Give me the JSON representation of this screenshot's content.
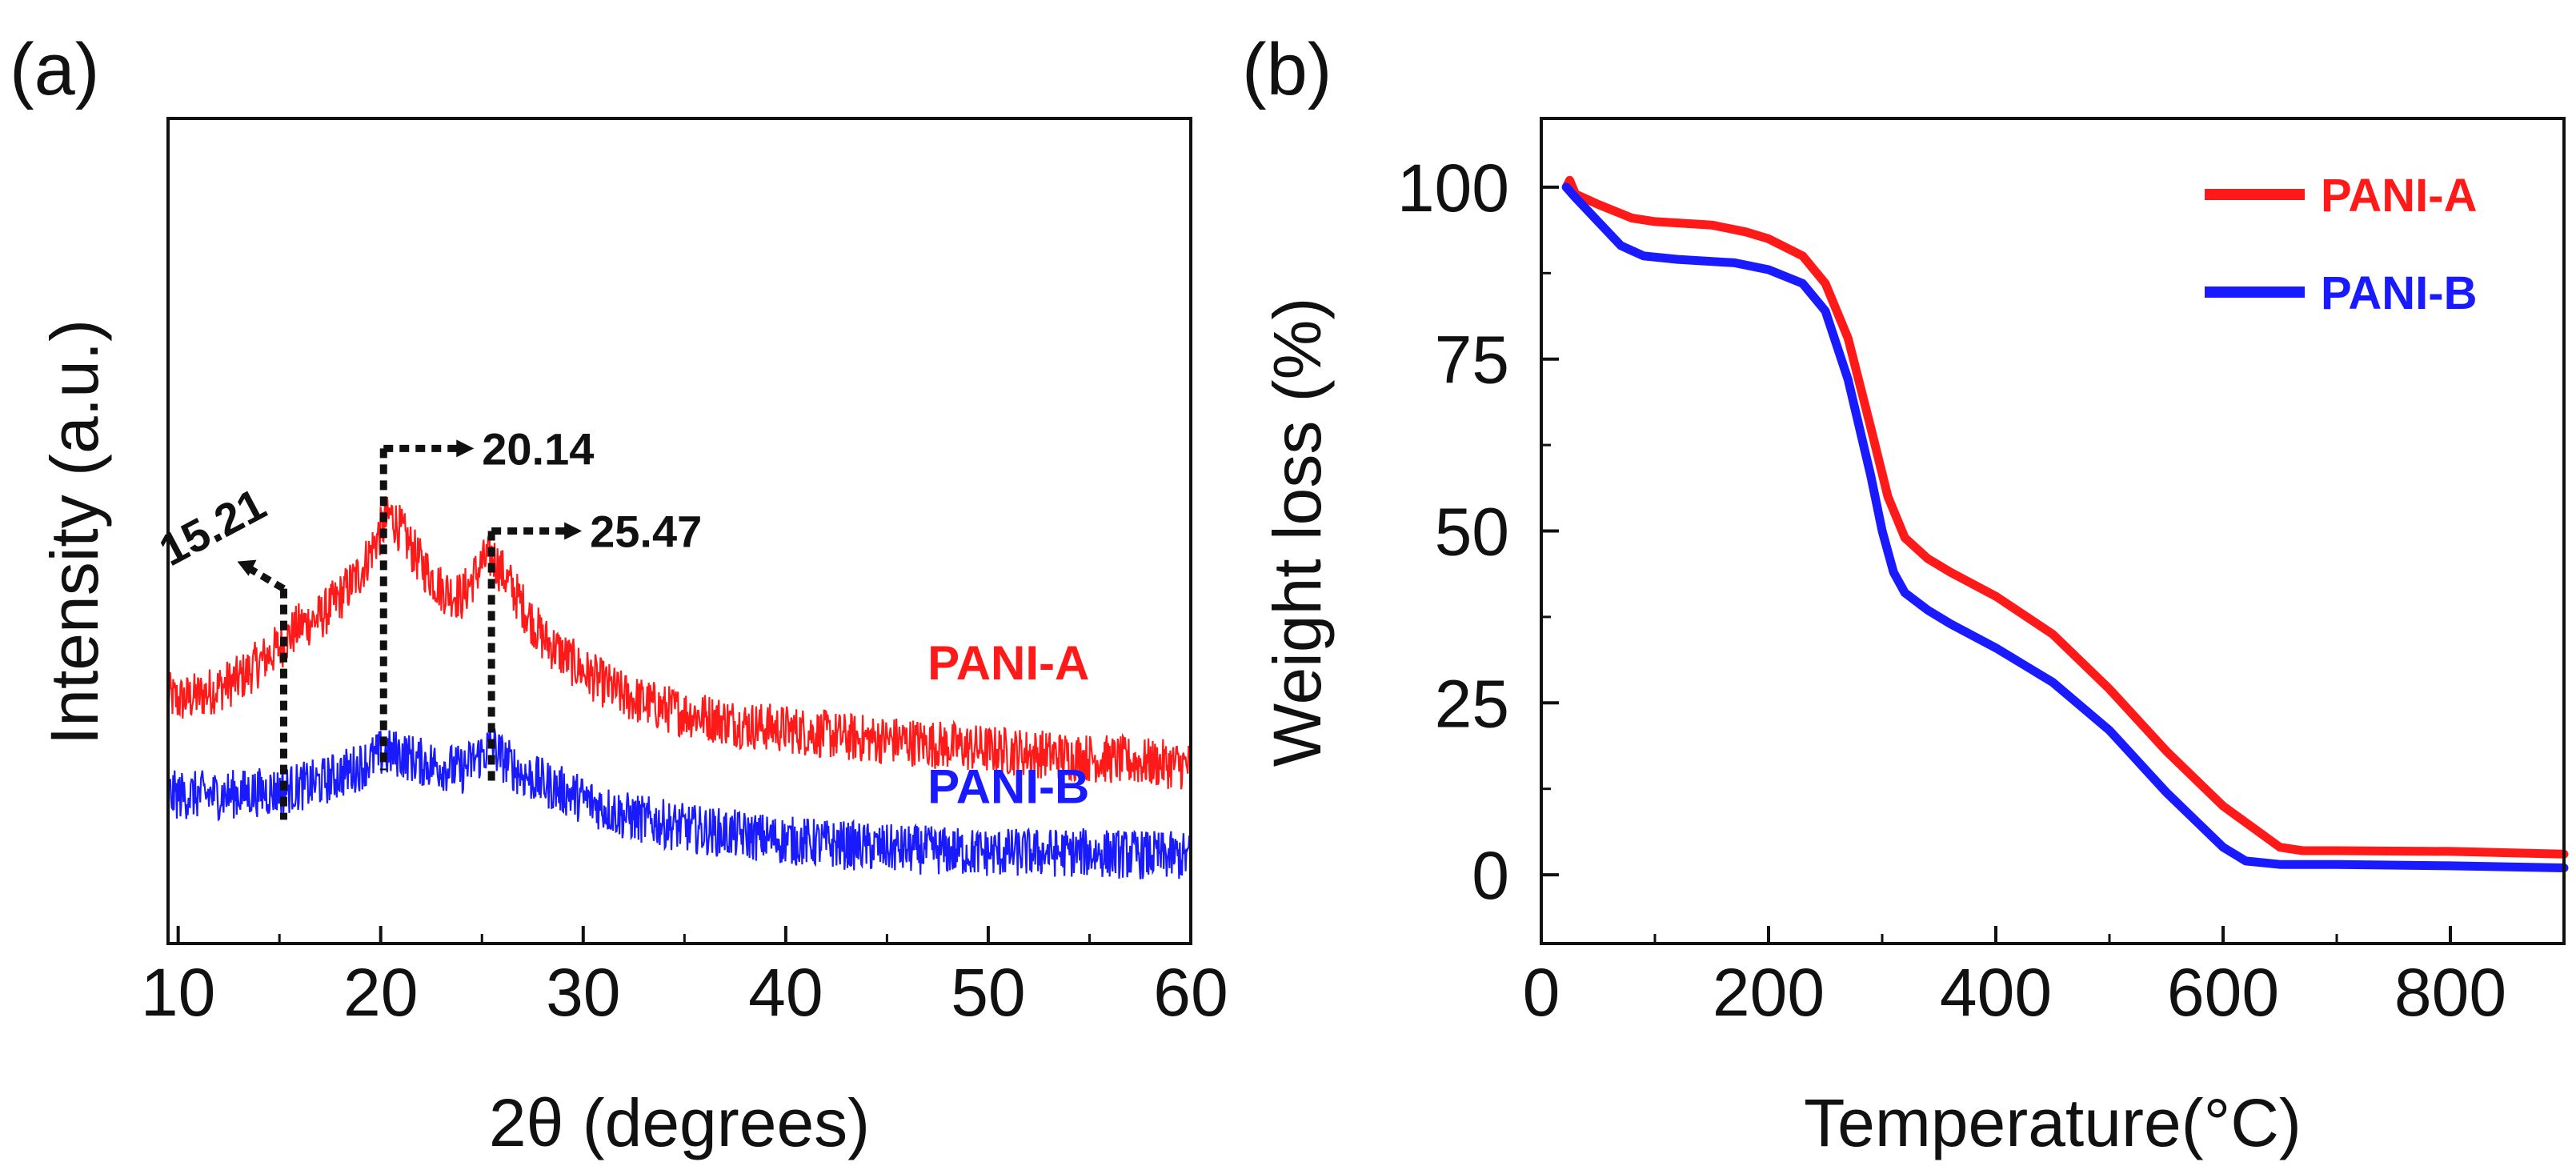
{
  "chart_data": [
    {
      "type": "line",
      "panel_label": "(a)",
      "xlabel": "2θ (degrees)",
      "ylabel": "Intensity (a.u.)",
      "xlim": [
        9.5,
        60
      ],
      "ylim": [
        0,
        100
      ],
      "xticks": [
        10,
        20,
        30,
        40,
        50,
        60
      ],
      "xtick_labels": [
        "10",
        "20",
        "30",
        "40",
        "50",
        "60"
      ],
      "y_ticks_shown": false,
      "series": [
        {
          "name": "PANI-A",
          "color": "#ff1a1a",
          "noisy": true,
          "points": [
            [
              9.5,
              30
            ],
            [
              10,
              29.5
            ],
            [
              11,
              30
            ],
            [
              12,
              31
            ],
            [
              13,
              32
            ],
            [
              14,
              34
            ],
            [
              15,
              36
            ],
            [
              16,
              38.5
            ],
            [
              17,
              39.5
            ],
            [
              18,
              42
            ],
            [
              19,
              45
            ],
            [
              20,
              50
            ],
            [
              20.5,
              52
            ],
            [
              21,
              50
            ],
            [
              22,
              46
            ],
            [
              23,
              43
            ],
            [
              24,
              42
            ],
            [
              25,
              46
            ],
            [
              25.5,
              47
            ],
            [
              26,
              45
            ],
            [
              27,
              41
            ],
            [
              28,
              37
            ],
            [
              29,
              35
            ],
            [
              30,
              33
            ],
            [
              32,
              30
            ],
            [
              34,
              28.5
            ],
            [
              36,
              27.5
            ],
            [
              38,
              26.5
            ],
            [
              40,
              26
            ],
            [
              43,
              25
            ],
            [
              46,
              24.5
            ],
            [
              50,
              23.5
            ],
            [
              55,
              22.5
            ],
            [
              60,
              21.5
            ]
          ]
        },
        {
          "name": "PANI-B",
          "color": "#1a1aff",
          "noisy": true,
          "points": [
            [
              9.5,
              18
            ],
            [
              12,
              18
            ],
            [
              15,
              18.5
            ],
            [
              17,
              19.5
            ],
            [
              19,
              21.5
            ],
            [
              20,
              23
            ],
            [
              21,
              23
            ],
            [
              22,
              22
            ],
            [
              23,
              21.5
            ],
            [
              24,
              21
            ],
            [
              25,
              23
            ],
            [
              25.5,
              24
            ],
            [
              26,
              22.5
            ],
            [
              27,
              20.5
            ],
            [
              28,
              19.5
            ],
            [
              30,
              17.5
            ],
            [
              32,
              15.5
            ],
            [
              35,
              14
            ],
            [
              40,
              12.5
            ],
            [
              45,
              11.5
            ],
            [
              50,
              11
            ],
            [
              55,
              11
            ],
            [
              60,
              10.5
            ]
          ]
        }
      ],
      "series_labels": [
        {
          "text": "PANI-A",
          "color": "#ff1a1a",
          "x": 51,
          "y": 32
        },
        {
          "text": "PANI-B",
          "color": "#1a1aff",
          "x": 51,
          "y": 17
        }
      ],
      "annotations": [
        {
          "text": "15.21",
          "peak_x": 15.21,
          "line_top": 43,
          "line_bottom": 15
        },
        {
          "text": "20.14",
          "peak_x": 20.14,
          "line_top": 60,
          "line_bottom": 21
        },
        {
          "text": "25.47",
          "peak_x": 25.47,
          "line_top": 50,
          "line_bottom": 19
        }
      ]
    },
    {
      "type": "line",
      "panel_label": "(b)",
      "xlabel": "Temperature(°C)",
      "ylabel": "Weight loss (%)",
      "xlim": [
        0,
        900
      ],
      "ylim": [
        -10,
        110
      ],
      "xticks": [
        0,
        200,
        400,
        600,
        800
      ],
      "xtick_labels": [
        "0",
        "200",
        "400",
        "600",
        "800"
      ],
      "yticks": [
        0,
        25,
        50,
        75,
        100
      ],
      "ytick_labels": [
        "0",
        "25",
        "50",
        "75",
        "100"
      ],
      "legend_position": "top-right",
      "series": [
        {
          "name": "PANI-A",
          "color": "#ff1a1a",
          "points": [
            [
              22,
              100
            ],
            [
              25,
              101
            ],
            [
              30,
              99
            ],
            [
              50,
              97.5
            ],
            [
              80,
              95.5
            ],
            [
              100,
              95
            ],
            [
              150,
              94.5
            ],
            [
              180,
              93.5
            ],
            [
              200,
              92.5
            ],
            [
              230,
              90
            ],
            [
              250,
              86
            ],
            [
              270,
              78
            ],
            [
              290,
              65
            ],
            [
              305,
              55
            ],
            [
              320,
              49
            ],
            [
              340,
              46
            ],
            [
              360,
              44
            ],
            [
              400,
              40.5
            ],
            [
              450,
              35
            ],
            [
              500,
              27
            ],
            [
              550,
              18
            ],
            [
              600,
              10
            ],
            [
              650,
              4
            ],
            [
              670,
              3.5
            ],
            [
              700,
              3.5
            ],
            [
              800,
              3.4
            ],
            [
              900,
              3
            ]
          ]
        },
        {
          "name": "PANI-B",
          "color": "#1a1aff",
          "points": [
            [
              22,
              100
            ],
            [
              30,
              98.5
            ],
            [
              50,
              95
            ],
            [
              70,
              91.5
            ],
            [
              90,
              90
            ],
            [
              120,
              89.5
            ],
            [
              170,
              89
            ],
            [
              200,
              88
            ],
            [
              230,
              86
            ],
            [
              250,
              82
            ],
            [
              270,
              72
            ],
            [
              290,
              58
            ],
            [
              300,
              50
            ],
            [
              310,
              44
            ],
            [
              320,
              41
            ],
            [
              340,
              38.5
            ],
            [
              360,
              36.5
            ],
            [
              400,
              33
            ],
            [
              450,
              28
            ],
            [
              500,
              21
            ],
            [
              550,
              12
            ],
            [
              600,
              4
            ],
            [
              620,
              2
            ],
            [
              650,
              1.5
            ],
            [
              700,
              1.5
            ],
            [
              800,
              1.3
            ],
            [
              900,
              1
            ]
          ]
        }
      ]
    }
  ]
}
